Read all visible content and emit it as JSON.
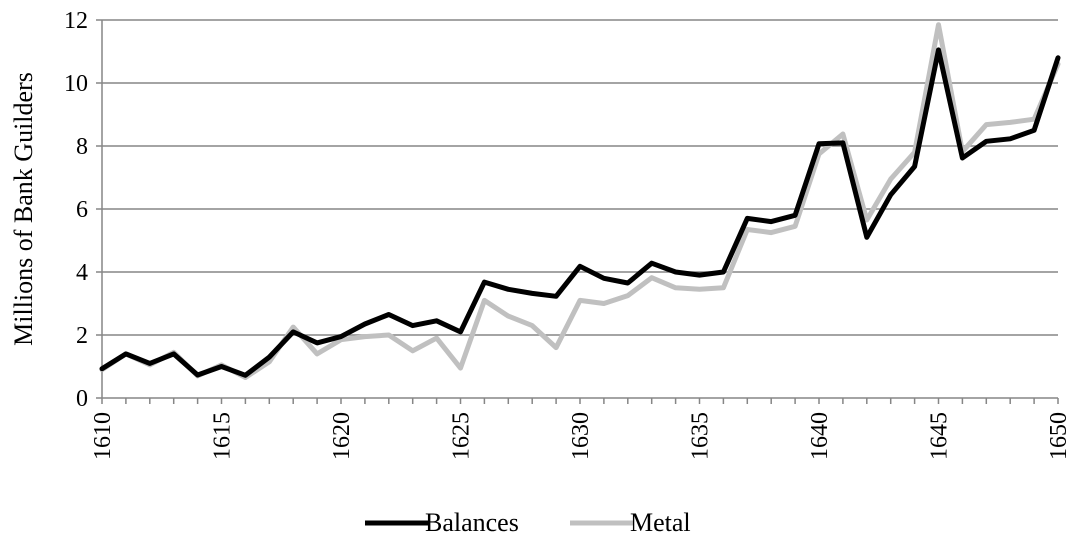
{
  "chart_data": {
    "type": "line",
    "title": "",
    "xlabel": "",
    "ylabel": "Millions of Bank Guilders",
    "xlim": [
      1610,
      1650
    ],
    "ylim": [
      0,
      12
    ],
    "ytick_labels": [
      "0",
      "2",
      "4",
      "6",
      "8",
      "10",
      "12"
    ],
    "ytick_values": [
      0,
      2,
      4,
      6,
      8,
      10,
      12
    ],
    "xtick_labels": [
      "1610",
      "1615",
      "1620",
      "1625",
      "1630",
      "1635",
      "1640",
      "1645",
      "1650"
    ],
    "xtick_values": [
      1610,
      1615,
      1620,
      1625,
      1630,
      1635,
      1640,
      1645,
      1650
    ],
    "grid": "horizontal",
    "legend_position": "bottom",
    "x": [
      1610,
      1611,
      1612,
      1613,
      1614,
      1615,
      1616,
      1617,
      1618,
      1619,
      1620,
      1621,
      1622,
      1623,
      1624,
      1625,
      1626,
      1627,
      1628,
      1629,
      1630,
      1631,
      1632,
      1633,
      1634,
      1635,
      1636,
      1637,
      1638,
      1639,
      1640,
      1641,
      1642,
      1643,
      1644,
      1645,
      1646,
      1647,
      1648,
      1649,
      1650
    ],
    "series": [
      {
        "name": "Balances",
        "color": "#000000",
        "values": [
          0.93,
          1.4,
          1.1,
          1.4,
          0.73,
          1.0,
          0.72,
          1.3,
          2.1,
          1.75,
          1.95,
          2.35,
          2.65,
          2.3,
          2.45,
          2.1,
          3.68,
          3.45,
          3.32,
          3.23,
          4.18,
          3.8,
          3.65,
          4.28,
          4.0,
          3.9,
          4.0,
          5.7,
          5.6,
          5.8,
          8.07,
          8.1,
          5.1,
          6.45,
          7.35,
          11.05,
          7.62,
          8.15,
          8.23,
          8.5,
          10.8
        ]
      },
      {
        "name": "Metal",
        "color": "#c0c0c0",
        "values": [
          0.9,
          1.4,
          1.05,
          1.45,
          0.7,
          1.05,
          0.65,
          1.15,
          2.25,
          1.4,
          1.85,
          1.95,
          2.0,
          1.5,
          1.9,
          0.95,
          3.1,
          2.6,
          2.3,
          1.6,
          3.1,
          3.0,
          3.25,
          3.82,
          3.5,
          3.45,
          3.5,
          5.35,
          5.25,
          5.45,
          7.75,
          8.38,
          5.65,
          6.95,
          7.8,
          11.85,
          7.82,
          8.68,
          8.75,
          8.85,
          10.6
        ]
      }
    ]
  }
}
